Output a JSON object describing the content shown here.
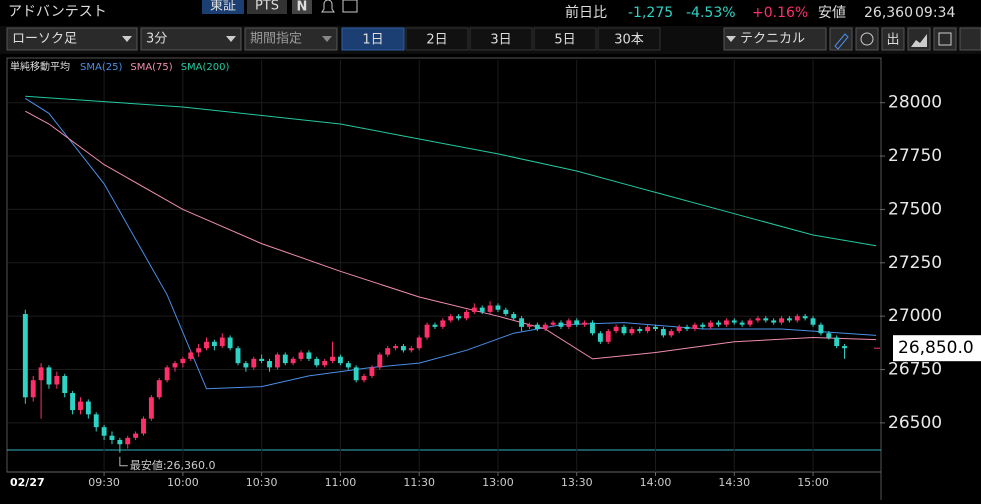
{
  "header": {
    "title": "アドバンテスト",
    "market": "東証",
    "pts": "PTS",
    "news_icon": "N",
    "change_label": "前日比",
    "change": "-1,275",
    "change_pct": "-4.53%",
    "pts_change_pct": "+0.16%",
    "low_label": "安値",
    "low_price": "26,360",
    "time": "09:34"
  },
  "toolbar": {
    "chart_type": "ローソク足",
    "interval": "3分",
    "period": "期間指定",
    "ranges": [
      "1日",
      "2日",
      "3日",
      "5日",
      "30本"
    ],
    "technical": "テクニカル",
    "output": "出"
  },
  "chart_data": {
    "type": "candlestick",
    "legend_title": "単純移動平均",
    "date_label": "02/27",
    "up_color": "#ff2f6a",
    "down_color": "#2fd3c5",
    "xlim": [
      -2.2,
      108.5
    ],
    "ylim": [
      26270,
      28200
    ],
    "yticks": [
      26500,
      26750,
      27000,
      27250,
      27500,
      27750,
      28000
    ],
    "xticks": [
      {
        "value": 10,
        "label": "09:30"
      },
      {
        "value": 20,
        "label": "10:00"
      },
      {
        "value": 30,
        "label": "10:30"
      },
      {
        "value": 40,
        "label": "11:00"
      },
      {
        "value": 50,
        "label": "11:30"
      },
      {
        "value": 60,
        "label": "13:00"
      },
      {
        "value": 70,
        "label": "13:30"
      },
      {
        "value": 80,
        "label": "14:00"
      },
      {
        "value": 90,
        "label": "14:30"
      },
      {
        "value": 100,
        "label": "15:00"
      }
    ],
    "ohlc": [
      [
        27010,
        27030,
        26590,
        26620
      ],
      [
        26620,
        26720,
        26600,
        26700
      ],
      [
        26700,
        26780,
        26520,
        26760
      ],
      [
        26760,
        26770,
        26660,
        26680
      ],
      [
        26680,
        26740,
        26660,
        26720
      ],
      [
        26720,
        26730,
        26620,
        26640
      ],
      [
        26640,
        26650,
        26540,
        26560
      ],
      [
        26560,
        26620,
        26540,
        26600
      ],
      [
        26600,
        26610,
        26520,
        26540
      ],
      [
        26540,
        26550,
        26460,
        26480
      ],
      [
        26480,
        26490,
        26420,
        26440
      ],
      [
        26440,
        26460,
        26400,
        26420
      ],
      [
        26420,
        26430,
        26360,
        26400
      ],
      [
        26400,
        26440,
        26380,
        26430
      ],
      [
        26430,
        26460,
        26420,
        26450
      ],
      [
        26450,
        26530,
        26440,
        26520
      ],
      [
        26520,
        26630,
        26510,
        26620
      ],
      [
        26620,
        26710,
        26610,
        26700
      ],
      [
        26700,
        26770,
        26690,
        26760
      ],
      [
        26760,
        26790,
        26740,
        26780
      ],
      [
        26780,
        26810,
        26760,
        26800
      ],
      [
        26800,
        26840,
        26790,
        26830
      ],
      [
        26830,
        26870,
        26810,
        26850
      ],
      [
        26850,
        26900,
        26840,
        26880
      ],
      [
        26880,
        26890,
        26840,
        26860
      ],
      [
        26860,
        26920,
        26850,
        26900
      ],
      [
        26900,
        26910,
        26840,
        26850
      ],
      [
        26850,
        26860,
        26770,
        26780
      ],
      [
        26780,
        26790,
        26740,
        26760
      ],
      [
        26760,
        26810,
        26750,
        26800
      ],
      [
        26800,
        26820,
        26780,
        26790
      ],
      [
        26790,
        26800,
        26740,
        26760
      ],
      [
        26760,
        26830,
        26750,
        26820
      ],
      [
        26820,
        26830,
        26770,
        26780
      ],
      [
        26780,
        26810,
        26770,
        26800
      ],
      [
        26800,
        26840,
        26790,
        26830
      ],
      [
        26830,
        26840,
        26790,
        26800
      ],
      [
        26800,
        26810,
        26760,
        26770
      ],
      [
        26770,
        26800,
        26760,
        26790
      ],
      [
        26790,
        26880,
        26780,
        26810
      ],
      [
        26810,
        26820,
        26770,
        26780
      ],
      [
        26780,
        26790,
        26750,
        26760
      ],
      [
        26760,
        26770,
        26690,
        26700
      ],
      [
        26700,
        26730,
        26690,
        26720
      ],
      [
        26720,
        26770,
        26710,
        26760
      ],
      [
        26760,
        26830,
        26750,
        26820
      ],
      [
        26820,
        26860,
        26810,
        26850
      ],
      [
        26850,
        26870,
        26840,
        26860
      ],
      [
        26860,
        26870,
        26830,
        26840
      ],
      [
        26840,
        26860,
        26830,
        26850
      ],
      [
        26850,
        26910,
        26840,
        26900
      ],
      [
        26900,
        26970,
        26890,
        26960
      ],
      [
        26960,
        26970,
        26940,
        26950
      ],
      [
        26950,
        26990,
        26940,
        26980
      ],
      [
        26980,
        27010,
        26970,
        27000
      ],
      [
        27000,
        27010,
        26980,
        26990
      ],
      [
        26990,
        27030,
        26980,
        27020
      ],
      [
        27020,
        27060,
        27010,
        27040
      ],
      [
        27040,
        27050,
        27010,
        27020
      ],
      [
        27020,
        27070,
        27010,
        27050
      ],
      [
        27050,
        27060,
        27020,
        27030
      ],
      [
        27030,
        27040,
        27000,
        27010
      ],
      [
        27010,
        27020,
        26980,
        26990
      ],
      [
        26990,
        27000,
        26930,
        26950
      ],
      [
        26950,
        26970,
        26940,
        26960
      ],
      [
        26960,
        26970,
        26930,
        26940
      ],
      [
        26940,
        26970,
        26930,
        26960
      ],
      [
        26960,
        26980,
        26950,
        26970
      ],
      [
        26970,
        26980,
        26940,
        26950
      ],
      [
        26950,
        26990,
        26940,
        26980
      ],
      [
        26980,
        26990,
        26950,
        26960
      ],
      [
        26960,
        26980,
        26950,
        26970
      ],
      [
        26970,
        26980,
        26910,
        26920
      ],
      [
        26920,
        26930,
        26870,
        26880
      ],
      [
        26880,
        26940,
        26870,
        26930
      ],
      [
        26930,
        26960,
        26920,
        26950
      ],
      [
        26950,
        26960,
        26910,
        26920
      ],
      [
        26920,
        26950,
        26910,
        26940
      ],
      [
        26940,
        26950,
        26920,
        26930
      ],
      [
        26930,
        26960,
        26920,
        26950
      ],
      [
        26950,
        26960,
        26930,
        26940
      ],
      [
        26940,
        26950,
        26900,
        26910
      ],
      [
        26910,
        26940,
        26900,
        26930
      ],
      [
        26930,
        26960,
        26920,
        26950
      ],
      [
        26950,
        26960,
        26930,
        26940
      ],
      [
        26940,
        26970,
        26930,
        26960
      ],
      [
        26960,
        26970,
        26940,
        26950
      ],
      [
        26950,
        26980,
        26940,
        26970
      ],
      [
        26970,
        26980,
        26950,
        26960
      ],
      [
        26960,
        26990,
        26950,
        26980
      ],
      [
        26980,
        26990,
        26960,
        26970
      ],
      [
        26970,
        26980,
        26950,
        26960
      ],
      [
        26960,
        26990,
        26950,
        26980
      ],
      [
        26980,
        27000,
        26970,
        26990
      ],
      [
        26990,
        27000,
        26970,
        26980
      ],
      [
        26980,
        26990,
        26960,
        26970
      ],
      [
        26970,
        27000,
        26960,
        26990
      ],
      [
        26990,
        27000,
        26970,
        26980
      ],
      [
        26980,
        27010,
        26970,
        27000
      ],
      [
        27000,
        27010,
        26980,
        26990
      ],
      [
        26990,
        27000,
        26950,
        26960
      ],
      [
        26960,
        26970,
        26910,
        26920
      ],
      [
        26920,
        26930,
        26890,
        26900
      ],
      [
        26900,
        26910,
        26850,
        26860
      ],
      [
        26860,
        26870,
        26800,
        26850
      ]
    ],
    "series": [
      {
        "name": "SMA(25)",
        "color": "#4a8fe7",
        "x": [
          0,
          3,
          10,
          18,
          23,
          30,
          36,
          44,
          50,
          56,
          62,
          68,
          76,
          86,
          96,
          108
        ],
        "values": [
          28020,
          27950,
          27620,
          27100,
          26660,
          26670,
          26720,
          26760,
          26780,
          26840,
          26920,
          26960,
          26970,
          26940,
          26940,
          26910
        ]
      },
      {
        "name": "SMA(75)",
        "color": "#f08cb0",
        "x": [
          0,
          3,
          10,
          20,
          30,
          40,
          50,
          60,
          66,
          72,
          80,
          90,
          100,
          108
        ],
        "values": [
          27960,
          27900,
          27710,
          27500,
          27340,
          27210,
          27090,
          27000,
          26940,
          26800,
          26830,
          26880,
          26900,
          26890
        ]
      },
      {
        "name": "SMA(200)",
        "color": "#22c9a0",
        "x": [
          0,
          20,
          40,
          50,
          60,
          70,
          80,
          90,
          100,
          108
        ],
        "values": [
          28030,
          27980,
          27900,
          27830,
          27760,
          27680,
          27580,
          27480,
          27380,
          27330
        ]
      }
    ],
    "last_price": {
      "value": 26850,
      "label": "26,850.0"
    },
    "low_annotation": {
      "index": 12,
      "value": 26360,
      "label": "最安値:26,360.0"
    }
  }
}
